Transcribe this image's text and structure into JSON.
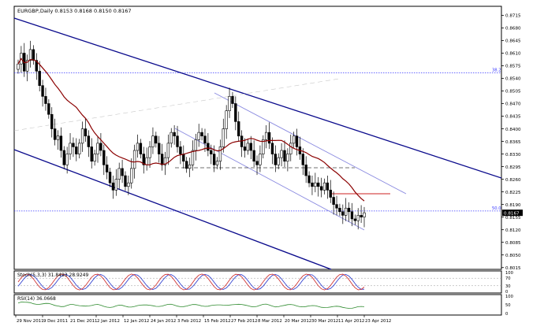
{
  "chart_data": {
    "type": "candlestick",
    "header": "EURGBP,Daily  0.8153 0.8168 0.8150 0.8167",
    "price_axis": {
      "range": [
        0.801,
        0.874
      ],
      "ticks": [
        "0.8715",
        "0.8680",
        "0.8645",
        "0.8610",
        "0.8575",
        "0.8540",
        "0.8505",
        "0.8470",
        "0.8435",
        "0.8400",
        "0.8365",
        "0.8330",
        "0.8295",
        "0.8260",
        "0.8225",
        "0.8190",
        "0.8155",
        "0.8120",
        "0.8085",
        "0.8050",
        "0.8015"
      ],
      "current_price": "0.8167",
      "current_value": 0.8167
    },
    "levels": [
      {
        "label": "38.2",
        "value": 0.8555,
        "color": "#3a3aff"
      },
      {
        "label": "50.0",
        "value": 0.8172,
        "color": "#3a3aff"
      }
    ],
    "date_labels": [
      "29 Nov 2011",
      "9 Dec 2011",
      "21 Dec 2011",
      "2 Jan 2012",
      "12 Jan 2012",
      "24 Jan 2012",
      "3 Feb 2012",
      "15 Feb 2012",
      "27 Feb 2012",
      "8 Mar 2012",
      "20 Mar 2012",
      "30 Mar 2012",
      "11 Apr 2012",
      "23 Apr 2012"
    ],
    "closes": [
      0.858,
      0.861,
      0.856,
      0.859,
      0.862,
      0.859,
      0.856,
      0.852,
      0.849,
      0.847,
      0.844,
      0.84,
      0.837,
      0.838,
      0.834,
      0.83,
      0.833,
      0.836,
      0.835,
      0.833,
      0.836,
      0.84,
      0.838,
      0.835,
      0.831,
      0.833,
      0.836,
      0.834,
      0.83,
      0.828,
      0.825,
      0.823,
      0.826,
      0.829,
      0.827,
      0.824,
      0.825,
      0.829,
      0.834,
      0.836,
      0.833,
      0.83,
      0.832,
      0.835,
      0.838,
      0.836,
      0.833,
      0.83,
      0.832,
      0.836,
      0.839,
      0.838,
      0.835,
      0.833,
      0.831,
      0.829,
      0.83,
      0.834,
      0.837,
      0.839,
      0.838,
      0.836,
      0.834,
      0.833,
      0.83,
      0.831,
      0.835,
      0.84,
      0.845,
      0.849,
      0.847,
      0.842,
      0.838,
      0.835,
      0.834,
      0.836,
      0.834,
      0.831,
      0.83,
      0.833,
      0.837,
      0.839,
      0.836,
      0.833,
      0.83,
      0.832,
      0.834,
      0.831,
      0.833,
      0.836,
      0.838,
      0.835,
      0.833,
      0.83,
      0.827,
      0.825,
      0.824,
      0.825,
      0.824,
      0.823,
      0.825,
      0.823,
      0.821,
      0.819,
      0.818,
      0.817,
      0.816,
      0.818,
      0.817,
      0.815,
      0.8145,
      0.816,
      0.8155,
      0.8167
    ],
    "indicators": [
      {
        "label": "Stoch(5,3,3) 31.8493 28.9249",
        "ticks": [
          "100",
          "70",
          "30",
          "0"
        ],
        "range": [
          0,
          100
        ],
        "levels": [
          70,
          30
        ]
      },
      {
        "label": "RSI(14) 36.0668",
        "ticks": [
          "100",
          "50",
          "0"
        ],
        "range": [
          0,
          100
        ]
      }
    ],
    "colors": {
      "channel": "#0a0a8c",
      "inner_channel": "#8a8ae0",
      "moving_average": "#8b0000",
      "fib": "#3a3aff",
      "stoch_main": "#cc2222",
      "stoch_signal": "#2233cc",
      "rsi": "#2e8b2e",
      "resistance": "#cc2222"
    }
  }
}
